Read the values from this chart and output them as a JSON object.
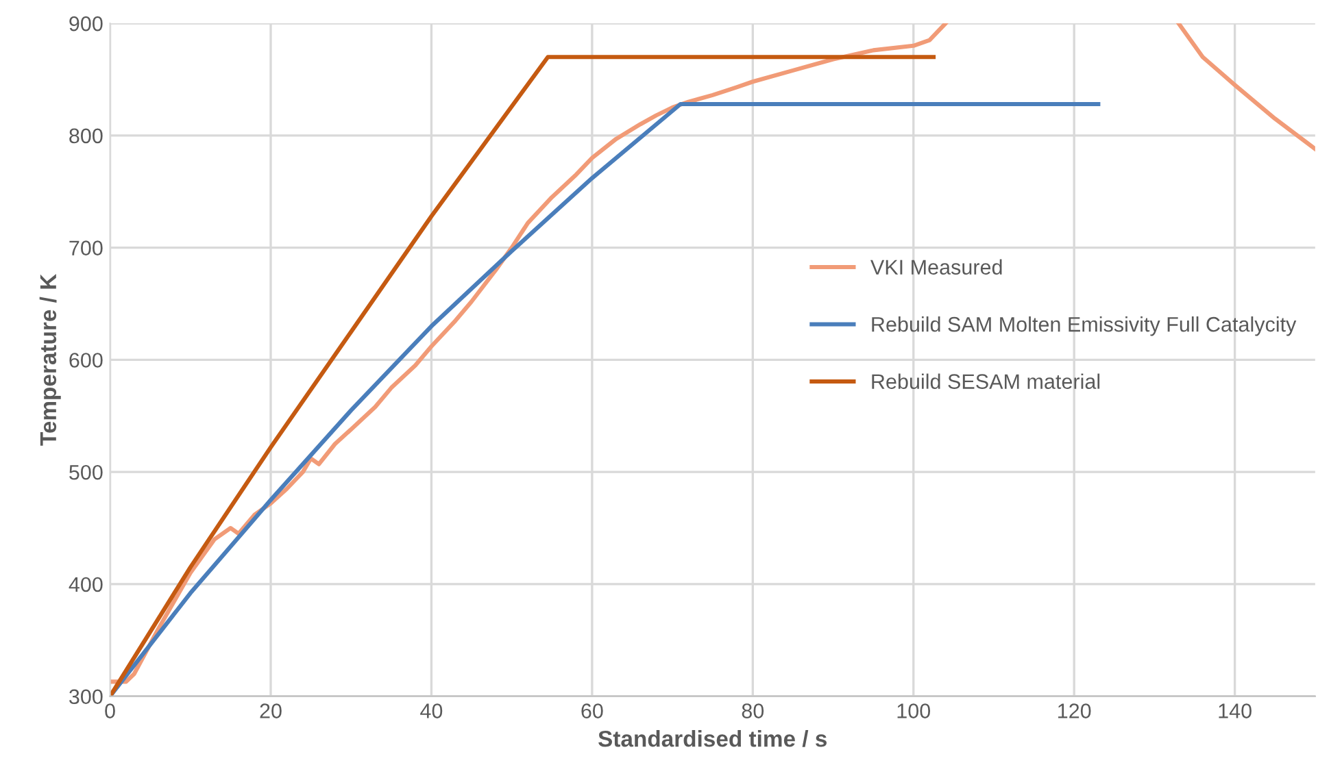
{
  "chart_data": {
    "type": "line",
    "xlabel": "Standardised time / s",
    "ylabel": "Temperature / K",
    "xlim": [
      0,
      150
    ],
    "xticks": [
      0,
      20,
      40,
      60,
      80,
      100,
      120,
      140
    ],
    "ylim": [
      300,
      900
    ],
    "yticks": [
      300,
      400,
      500,
      600,
      700,
      800,
      900
    ],
    "grid": true,
    "legend": "right",
    "marker": "none",
    "line_style": "solid",
    "series": [
      {
        "name": "VKI Measured",
        "color": "#f19b77",
        "x": [
          0,
          2,
          3,
          6,
          10,
          13,
          15,
          16,
          18,
          20,
          22,
          24,
          25,
          26,
          28,
          30,
          33,
          35,
          38,
          40,
          43,
          45,
          48,
          50,
          52,
          55,
          58,
          60,
          63,
          66,
          68,
          70,
          72,
          75,
          78,
          80,
          85,
          90,
          95,
          100,
          102,
          104,
          120,
          133,
          136,
          140,
          145,
          150
        ],
        "values": [
          313,
          313,
          320,
          360,
          410,
          440,
          450,
          445,
          462,
          472,
          485,
          500,
          512,
          507,
          525,
          538,
          558,
          575,
          595,
          612,
          635,
          652,
          680,
          700,
          722,
          745,
          765,
          780,
          797,
          810,
          818,
          825,
          830,
          836,
          843,
          848,
          858,
          868,
          876,
          880,
          885,
          900,
          null,
          900,
          870,
          845,
          815,
          788
        ]
      },
      {
        "name": "Rebuild SAM Molten Emissivity Full Catalycity",
        "color": "#4a7ebb",
        "x": [
          0,
          10,
          20,
          30,
          40,
          50,
          60,
          71,
          123
        ],
        "values": [
          300,
          392,
          475,
          555,
          630,
          697,
          762,
          828,
          828
        ]
      },
      {
        "name": "Rebuild SESAM material",
        "color": "#c55a11",
        "x": [
          0,
          10,
          20,
          30,
          40,
          54.5,
          102.5
        ],
        "values": [
          300,
          415,
          522,
          625,
          728,
          870,
          870
        ]
      }
    ]
  }
}
